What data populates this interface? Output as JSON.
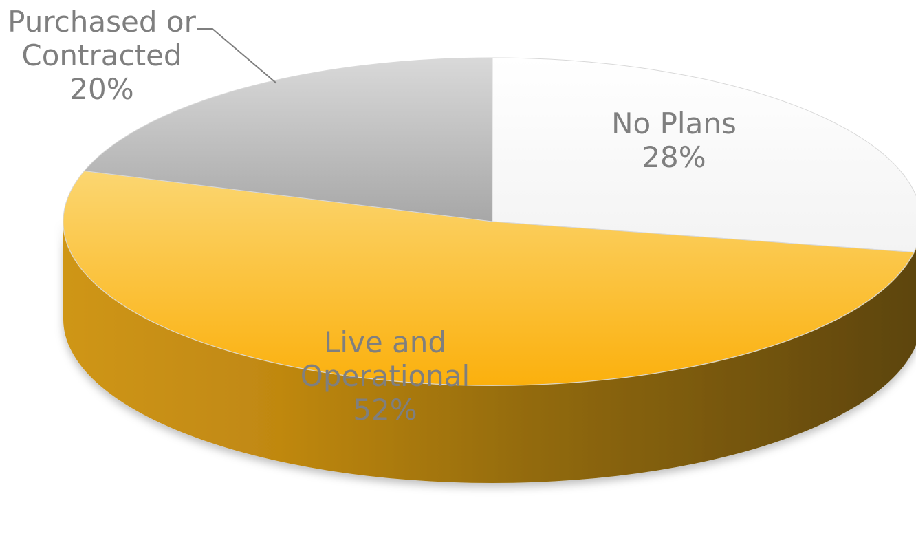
{
  "chart_data": {
    "type": "pie",
    "style": "3d",
    "title": "",
    "slices": [
      {
        "label_lines": [
          "No Plans"
        ],
        "percent_text": "28%",
        "value": 28,
        "color": "#ffffff"
      },
      {
        "label_lines": [
          "Live and",
          "Operational"
        ],
        "percent_text": "52%",
        "value": 52,
        "color": "#fab315"
      },
      {
        "label_lines": [
          "Purchased or",
          "Contracted"
        ],
        "percent_text": "20%",
        "value": 20,
        "color": "#c8c8c8"
      }
    ],
    "start": "12 o'clock",
    "direction": "clockwise",
    "legend": "none",
    "label_color": "#7f7f7f"
  }
}
